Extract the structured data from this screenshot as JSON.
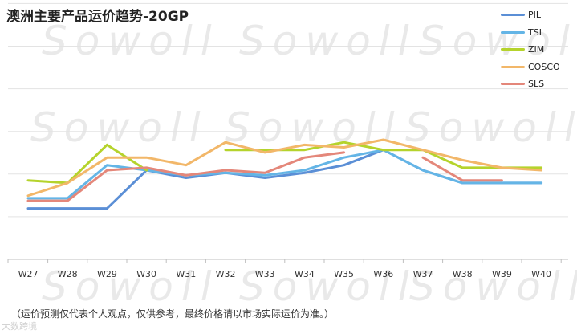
{
  "title": "澳洲主要产品运价趋势-20GP",
  "footnote": "（运价预测仅代表个人观点，仅供参考，最终价格请以市场实际运价为准。）",
  "watermark": "Sowoll",
  "corner_mark": "大数跨境",
  "chart_data": {
    "type": "line",
    "categories": [
      "W27",
      "W28",
      "W29",
      "W30",
      "W31",
      "W32",
      "W33",
      "W34",
      "W35",
      "W36",
      "W37",
      "W38",
      "W39",
      "W40"
    ],
    "ylim": [
      0,
      10
    ],
    "grid": true,
    "legend_position": "top-right",
    "series": [
      {
        "name": "PIL",
        "color": "#5b8fd6",
        "values": [
          2.0,
          2.0,
          2.0,
          3.5,
          3.2,
          3.4,
          3.2,
          3.4,
          3.7,
          4.3,
          3.5,
          3.0,
          3.0,
          3.0
        ]
      },
      {
        "name": "TSL",
        "color": "#64b5e6",
        "values": [
          2.4,
          2.4,
          3.7,
          3.5,
          3.3,
          3.4,
          3.3,
          3.5,
          4.0,
          4.3,
          3.5,
          3.0,
          3.0,
          3.0
        ]
      },
      {
        "name": "ZIM",
        "color": "#b5d32c",
        "values": [
          3.1,
          3.0,
          4.5,
          3.5,
          null,
          4.3,
          4.3,
          4.3,
          4.6,
          4.3,
          4.3,
          3.6,
          3.6,
          3.6
        ]
      },
      {
        "name": "COSCO",
        "color": "#f2b769",
        "values": [
          2.5,
          3.0,
          4.0,
          4.0,
          3.7,
          4.6,
          4.2,
          4.5,
          4.4,
          4.7,
          4.3,
          3.9,
          3.6,
          3.5
        ]
      },
      {
        "name": "SLS",
        "color": "#e4877a",
        "values": [
          2.3,
          2.3,
          3.5,
          3.6,
          3.3,
          3.5,
          3.4,
          4.0,
          4.2,
          null,
          4.0,
          3.1,
          3.1,
          null
        ]
      }
    ]
  }
}
